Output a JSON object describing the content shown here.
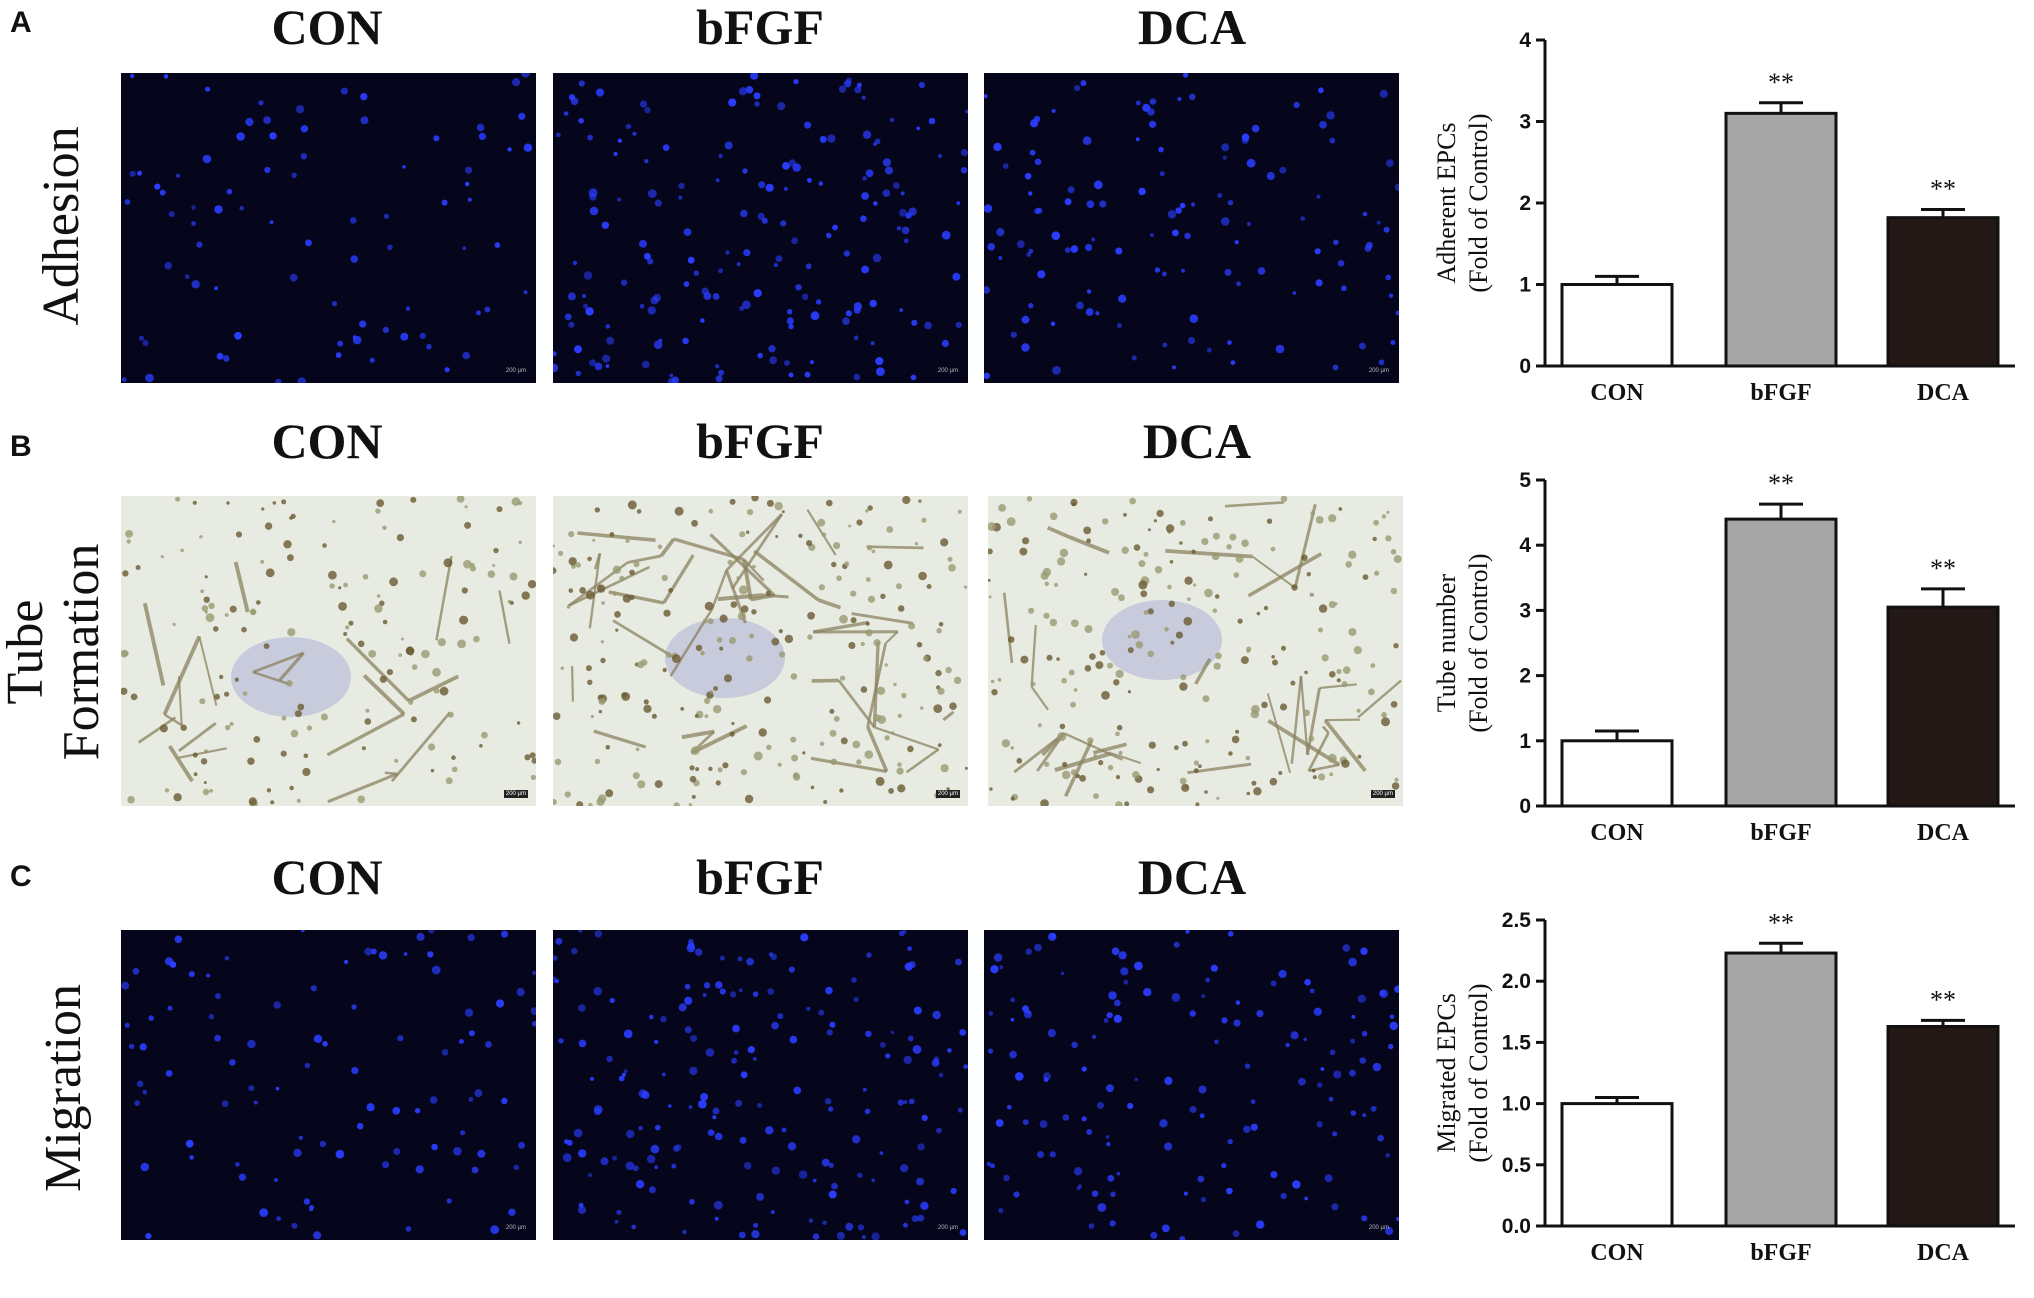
{
  "panels": [
    {
      "letter": "A",
      "row_label": [
        "Adhesion"
      ],
      "column_titles": [
        "CON",
        "bFGF",
        "DCA"
      ],
      "image_style": "fluor",
      "image_names": [
        "adhesion-con-image",
        "adhesion-bfgf-image",
        "adhesion-dca-image"
      ],
      "cell_density": [
        0.3,
        1.0,
        0.6
      ],
      "scalebar_label": "200 µm"
    },
    {
      "letter": "B",
      "row_label": [
        "Tube",
        "Formation"
      ],
      "column_titles": [
        "CON",
        "bFGF",
        "DCA"
      ],
      "image_style": "bright",
      "image_names": [
        "tube-con-image",
        "tube-bfgf-image",
        "tube-dca-image"
      ],
      "cell_density": [
        0.5,
        1.0,
        0.9
      ],
      "scalebar_label": "200 µm"
    },
    {
      "letter": "C",
      "row_label": [
        "Migration"
      ],
      "column_titles": [
        "CON",
        "bFGF",
        "DCA"
      ],
      "image_style": "fluor",
      "image_names": [
        "migration-con-image",
        "migration-bfgf-image",
        "migration-dca-image"
      ],
      "cell_density": [
        0.4,
        1.0,
        0.75
      ],
      "scalebar_label": "200 µm"
    }
  ],
  "colors": {
    "con_bar": "#ffffff",
    "bfgf_bar": "#a6a6a6",
    "dca_bar": "#231815",
    "fluor_cell": "#2a3dff",
    "fluor_bg": "#05051c",
    "bright_bg": "#e7ebe2"
  },
  "chart_data": [
    {
      "type": "bar",
      "categories": [
        "CON",
        "bFGF",
        "DCA"
      ],
      "values": [
        1.0,
        3.1,
        1.82
      ],
      "errors": [
        0.1,
        0.13,
        0.1
      ],
      "significance": [
        "",
        "**",
        "**"
      ],
      "ylabel": [
        "Adherent EPCs",
        "(Fold of Control)"
      ],
      "ylim": [
        0,
        4
      ],
      "yticks": [
        "0",
        "1",
        "2",
        "3",
        "4"
      ],
      "ytick_values": [
        0,
        1,
        2,
        3,
        4
      ]
    },
    {
      "type": "bar",
      "categories": [
        "CON",
        "bFGF",
        "DCA"
      ],
      "values": [
        1.0,
        4.4,
        3.05
      ],
      "errors": [
        0.15,
        0.23,
        0.28
      ],
      "significance": [
        "",
        "**",
        "**"
      ],
      "ylabel": [
        "Tube number",
        "(Fold of Control)"
      ],
      "ylim": [
        0,
        5
      ],
      "yticks": [
        "0",
        "1",
        "2",
        "3",
        "4",
        "5"
      ],
      "ytick_values": [
        0,
        1,
        2,
        3,
        4,
        5
      ]
    },
    {
      "type": "bar",
      "categories": [
        "CON",
        "bFGF",
        "DCA"
      ],
      "values": [
        1.0,
        2.23,
        1.63
      ],
      "errors": [
        0.05,
        0.08,
        0.05
      ],
      "significance": [
        "",
        "**",
        "**"
      ],
      "ylabel": [
        "Migrated EPCs",
        "(Fold of Control)"
      ],
      "ylim": [
        0,
        2.5
      ],
      "yticks": [
        "0.0",
        "0.5",
        "1.0",
        "1.5",
        "2.0",
        "2.5"
      ],
      "ytick_values": [
        0,
        0.5,
        1.0,
        1.5,
        2.0,
        2.5
      ]
    }
  ]
}
